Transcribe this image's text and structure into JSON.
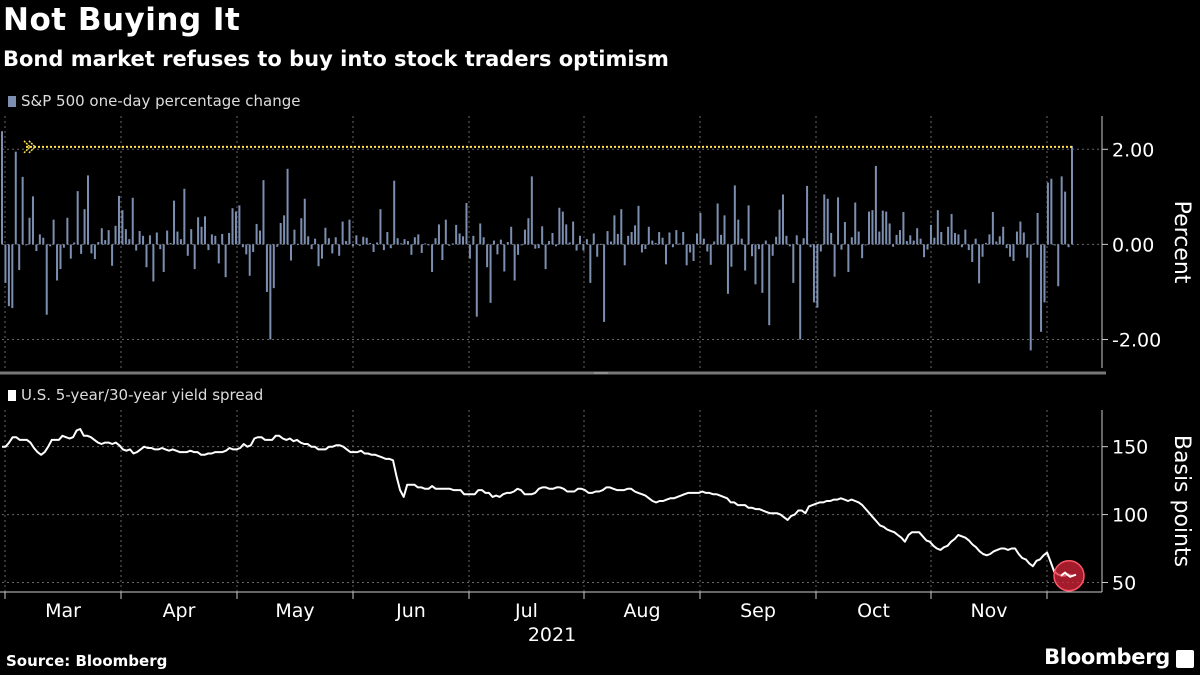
{
  "title": "Not Buying It",
  "subtitle": "Bond market refuses to buy into stock traders optimism",
  "source": "Source: Bloomberg",
  "brand": "Bloomberg",
  "colors": {
    "bar": "#7d8fb0",
    "spread": "#ffffff",
    "marker": "#ffe14d",
    "highlight": "#d9263a"
  },
  "chart_data": [
    {
      "type": "bar",
      "legend": "S&P 500 one-day percentage change",
      "ylabel": "Percent",
      "ylim": [
        -2.6,
        2.7
      ],
      "yticks": [
        2,
        0,
        -2
      ],
      "ytick_labels": [
        "2.00",
        "0.00",
        "-2.00"
      ],
      "reference_line": 2.05,
      "grid": true,
      "values": [
        2.38,
        -0.81,
        -1.3,
        -1.34,
        1.95,
        -0.54,
        1.42,
        -0.02,
        0.56,
        1.01,
        -0.14,
        0.21,
        0.14,
        -1.48,
        -0.04,
        0.52,
        -0.76,
        -0.52,
        -0.07,
        0.56,
        -0.3,
        0.04,
        1.12,
        -0.2,
        0.74,
        1.45,
        -0.19,
        -0.31,
        0.05,
        0.34,
        0.09,
        0.3,
        -0.45,
        0.39,
        1.02,
        0.72,
        0.32,
        0.11,
        0.98,
        -0.13,
        0.28,
        0.18,
        -0.48,
        0.19,
        -0.78,
        0.25,
        -0.1,
        -0.58,
        0.29,
        0.03,
        0.92,
        0.27,
        0.11,
        1.17,
        -0.24,
        0.32,
        -0.52,
        0.57,
        0.37,
        0.59,
        -0.12,
        0.21,
        0.18,
        -0.4,
        0.22,
        -0.69,
        0.24,
        0.76,
        0.69,
        0.82,
        -0.06,
        -0.21,
        -0.66,
        -0.16,
        0.43,
        0.29,
        1.35,
        -1.0,
        -2.0,
        -0.92,
        -0.05,
        0.45,
        0.61,
        1.59,
        -0.34,
        0.31,
        0.01,
        0.55,
        0.96,
        0.17,
        -0.1,
        0.12,
        -0.46,
        -0.3,
        0.35,
        0.13,
        -0.19,
        0.15,
        -0.24,
        0.48,
        0.07,
        0.52,
        -0.04,
        0.19,
        -0.03,
        0.16,
        0.14,
        0.03,
        -0.16,
        0.04,
        0.74,
        -0.12,
        0.26,
        -0.08,
        1.34,
        0.13,
        0.02,
        0.11,
        0.07,
        -0.22,
        0.15,
        0.21,
        -0.18,
        0.02,
        -0.02,
        -0.58,
        0.13,
        0.42,
        -0.33,
        0.52,
        -0.03,
        0.02,
        0.41,
        0.23,
        0.17,
        0.87,
        -0.3,
        0.18,
        -1.52,
        0.44,
        0.15,
        -0.48,
        -1.23,
        0.08,
        -0.21,
        0.1,
        -0.57,
        0.05,
        0.37,
        -0.76,
        -0.22,
        -0.01,
        0.31,
        0.55,
        1.43,
        -0.09,
        -0.08,
        0.38,
        -0.52,
        0.07,
        0.24,
        -0.04,
        0.77,
        0.69,
        0.42,
        0.04,
        0.48,
        -0.13,
        0.18,
        -0.13,
        0.11,
        -0.81,
        0.23,
        -0.26,
        0.01,
        -1.63,
        0.28,
        0.06,
        0.61,
        0.22,
        0.74,
        -0.44,
        0.18,
        0.26,
        0.4,
        0.81,
        -0.17,
        -0.1,
        0.37,
        0.08,
        0.03,
        0.26,
        0.14,
        -0.42,
        0.25,
        -0.06,
        0.3,
        0.02,
        0.26,
        -0.44,
        -0.17,
        -0.35,
        0.23,
        0.66,
        0.12,
        -0.15,
        -0.43,
        0.06,
        0.86,
        0.2,
        0.61,
        -1.04,
        -0.47,
        1.24,
        0.52,
        0.12,
        -0.55,
        0.82,
        -0.25,
        -0.84,
        -0.1,
        -1.02,
        0.08,
        -1.7,
        -0.24,
        0.16,
        0.73,
        1.05,
        0.18,
        -0.04,
        -0.81,
        0.19,
        -2.0,
        0.13,
        1.23,
        -0.06,
        -1.22,
        -1.33,
        -0.15,
        1.05,
        0.96,
        0.24,
        -0.68,
        0.99,
        -0.11,
        0.47,
        -0.58,
        0.15,
        0.88,
        0.27,
        -0.29,
        -0.01,
        0.69,
        0.72,
        1.65,
        0.27,
        0.71,
        0.69,
        0.44,
        -0.05,
        0.2,
        0.3,
        0.68,
        0.07,
        0.19,
        0.08,
        0.34,
        0.12,
        -0.27,
        -0.11,
        0.41,
        0.14,
        0.72,
        0.26,
        -0.02,
        0.37,
        0.64,
        0.24,
        0.21,
        -0.06,
        0.31,
        -0.12,
        -0.37,
        0.12,
        -0.82,
        -0.26,
        0.03,
        0.21,
        0.68,
        0.06,
        0.17,
        0.37,
        -0.08,
        -0.26,
        -0.35,
        0.27,
        0.48,
        0.25,
        -0.28,
        -2.23,
        0.02,
        0.66,
        -1.84,
        -1.22,
        1.3,
        1.38,
        -0.01,
        -0.88,
        1.43,
        1.11,
        -0.06,
        2.07
      ]
    },
    {
      "type": "line",
      "legend": "U.S. 5-year/30-year yield spread",
      "ylabel": "Basis points",
      "ylim": [
        43,
        177
      ],
      "yticks": [
        150,
        100,
        50
      ],
      "ytick_labels": [
        "150",
        "100",
        "50"
      ],
      "x_tick_labels": [
        "Mar",
        "Apr",
        "May",
        "Jun",
        "Jul",
        "Aug",
        "Sep",
        "Oct",
        "Nov"
      ],
      "x_group_label": "2021",
      "grid": true,
      "values": [
        150,
        150,
        153,
        157,
        157,
        155,
        155,
        155,
        153,
        149,
        146,
        144,
        146,
        150,
        155,
        155,
        155,
        158,
        157,
        156,
        157,
        162,
        163,
        158,
        158,
        157,
        155,
        153,
        152,
        153,
        153,
        152,
        153,
        151,
        148,
        147,
        148,
        145,
        146,
        148,
        150,
        149,
        149,
        148,
        148,
        149,
        148,
        147,
        148,
        147,
        146,
        146,
        146,
        147,
        146,
        146,
        144,
        144,
        145,
        145,
        146,
        146,
        146,
        147,
        149,
        148,
        148,
        149,
        152,
        150,
        151,
        156,
        157,
        157,
        155,
        155,
        155,
        158,
        158,
        156,
        155,
        156,
        154,
        155,
        153,
        152,
        152,
        150,
        150,
        148,
        148,
        148,
        150,
        150,
        151,
        151,
        150,
        148,
        146,
        146,
        146,
        147,
        145,
        145,
        144,
        144,
        143,
        142,
        141,
        141,
        140,
        128,
        118,
        113,
        122,
        122,
        122,
        120,
        120,
        119,
        119,
        121,
        119,
        119,
        119,
        119,
        119,
        118,
        118,
        118,
        115,
        115,
        115,
        115,
        118,
        118,
        116,
        116,
        113,
        114,
        113,
        115,
        116,
        116,
        117,
        119,
        118,
        115,
        115,
        115,
        116,
        119,
        120,
        120,
        119,
        119,
        120,
        120,
        119,
        117,
        117,
        117,
        119,
        119,
        118,
        116,
        116,
        117,
        117,
        118,
        120,
        120,
        119,
        118,
        118,
        118,
        119,
        119,
        117,
        116,
        115,
        114,
        112,
        110,
        109,
        110,
        110,
        111,
        112,
        112,
        113,
        114,
        115,
        116,
        116,
        116,
        116,
        117,
        116,
        116,
        115,
        115,
        114,
        113,
        112,
        109,
        109,
        107,
        107,
        107,
        105,
        105,
        104,
        104,
        103,
        102,
        101,
        101,
        101,
        100,
        98,
        96,
        99,
        100,
        103,
        103,
        101,
        106,
        107,
        108,
        109,
        109,
        110,
        110,
        111,
        111,
        112,
        111,
        110,
        111,
        110,
        109,
        107,
        104,
        101,
        98,
        95,
        92,
        91,
        89,
        88,
        87,
        85,
        83,
        80,
        85,
        87,
        87,
        87,
        84,
        81,
        80,
        77,
        75,
        74,
        76,
        77,
        80,
        82,
        85,
        84,
        83,
        81,
        78,
        76,
        73,
        71,
        70,
        71,
        73,
        74,
        75,
        75,
        74,
        75,
        75,
        71,
        68,
        67,
        64,
        62,
        66,
        67,
        70,
        72,
        65,
        58,
        56,
        55,
        55,
        56,
        55
      ]
    }
  ]
}
